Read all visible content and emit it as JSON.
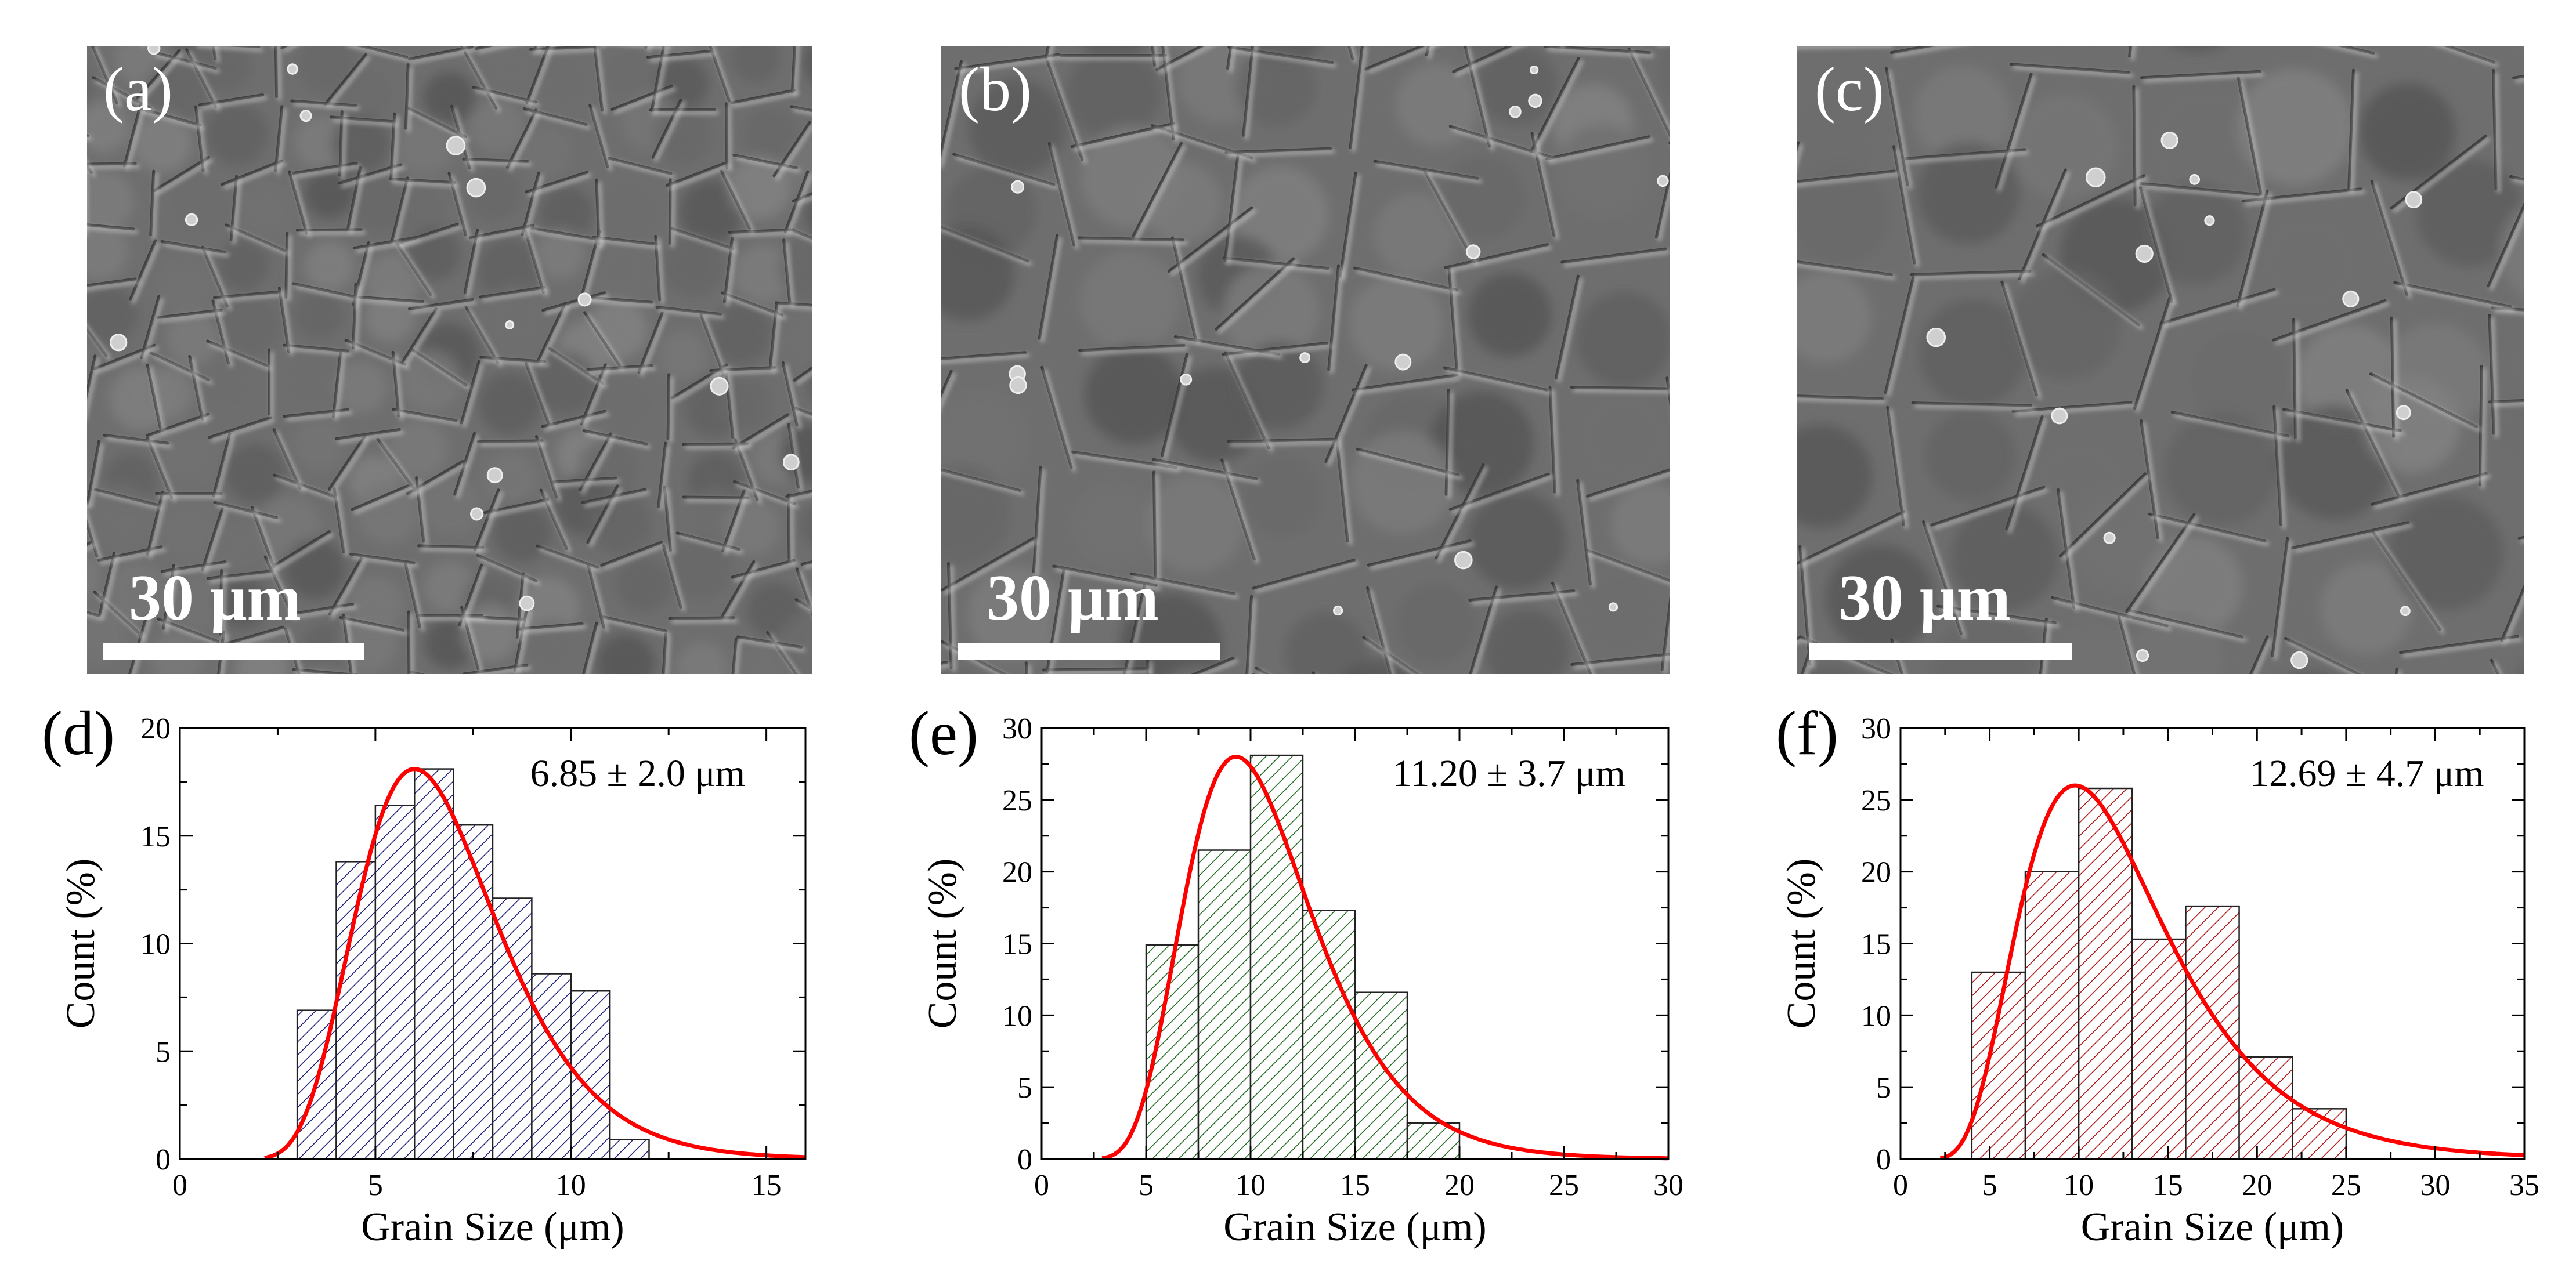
{
  "figure": {
    "micrographs": [
      {
        "label": "(a)",
        "scale_bar": "30  μm",
        "grain_size_um": 6.85,
        "seed": 11
      },
      {
        "label": "(b)",
        "scale_bar": "30  μm",
        "grain_size_um": 11.2,
        "seed": 23
      },
      {
        "label": "(c)",
        "scale_bar": "30  μm",
        "grain_size_um": 12.69,
        "seed": 37
      }
    ]
  },
  "chart_data": [
    {
      "type": "bar",
      "panel": "(d)",
      "annotation": "6.85 ± 2.0 μm",
      "xlabel": "Grain Size (μm)",
      "ylabel": "Count (%)",
      "xlim": [
        0,
        16
      ],
      "ylim": [
        0,
        20
      ],
      "xticks": [
        0,
        5,
        10,
        15
      ],
      "yticks": [
        0,
        5,
        10,
        15,
        20
      ],
      "bin_edges": [
        3,
        4,
        5,
        6,
        7,
        8,
        9,
        10,
        11,
        12
      ],
      "values": [
        6.9,
        13.8,
        16.4,
        18.1,
        15.5,
        12.1,
        8.6,
        7.8,
        0.9
      ],
      "fill_color": "#1a1a7a",
      "fit": {
        "type": "lognormal",
        "peak_x": 6.0,
        "peak_y": 18.1,
        "sigma": 0.3
      },
      "fit_color": "#ff0000"
    },
    {
      "type": "bar",
      "panel": "(e)",
      "annotation": "11.20 ± 3.7 μm",
      "xlabel": "Grain Size (μm)",
      "ylabel": "Count (%)",
      "xlim": [
        0,
        30
      ],
      "ylim": [
        0,
        30
      ],
      "xticks": [
        0,
        5,
        10,
        15,
        20,
        25,
        30
      ],
      "yticks": [
        0,
        5,
        10,
        15,
        20,
        25,
        30
      ],
      "bin_edges": [
        5,
        7.5,
        10,
        12.5,
        15,
        17.5,
        20
      ],
      "values": [
        14.9,
        21.5,
        28.1,
        17.3,
        11.6,
        2.5
      ],
      "fill_color": "#1f6b1f",
      "fit": {
        "type": "lognormal",
        "peak_x": 9.3,
        "peak_y": 28.0,
        "sigma": 0.33
      },
      "fit_color": "#ff0000"
    },
    {
      "type": "bar",
      "panel": "(f)",
      "annotation": "12.69 ± 4.7 μm",
      "xlabel": "Grain Size (μm)",
      "ylabel": "Count (%)",
      "xlim": [
        0,
        35
      ],
      "ylim": [
        0,
        30
      ],
      "xticks": [
        0,
        5,
        10,
        15,
        20,
        25,
        30,
        35
      ],
      "yticks": [
        0,
        5,
        10,
        15,
        20,
        25,
        30
      ],
      "bin_edges": [
        4,
        7,
        10,
        13,
        16,
        19,
        22,
        25
      ],
      "values": [
        13.0,
        20.0,
        25.8,
        15.3,
        17.6,
        7.1,
        3.5
      ],
      "fill_color": "#b01010",
      "fit": {
        "type": "lognormal",
        "peak_x": 9.8,
        "peak_y": 26.0,
        "sigma": 0.42
      },
      "fit_color": "#ff0000"
    }
  ]
}
